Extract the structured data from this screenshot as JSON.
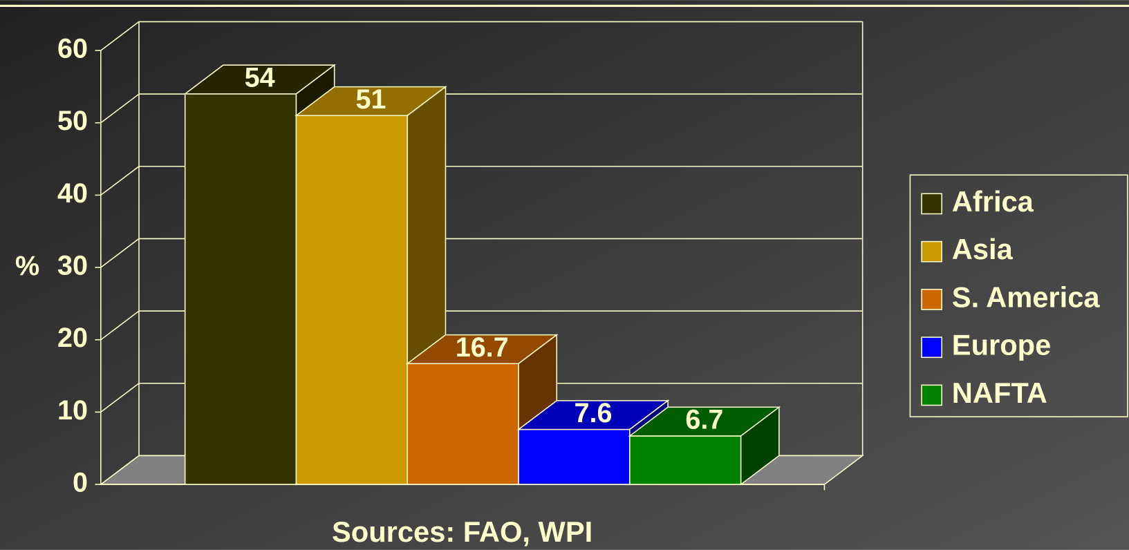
{
  "chart_data": {
    "type": "bar3d",
    "categories": [
      null
    ],
    "series": [
      {
        "name": "Africa",
        "color": "#333300",
        "values": [
          54
        ]
      },
      {
        "name": "Asia",
        "color": "#cc9900",
        "values": [
          51
        ]
      },
      {
        "name": "S. America",
        "color": "#cc6600",
        "values": [
          16.7
        ]
      },
      {
        "name": "Europe",
        "color": "#0000ff",
        "values": [
          7.6
        ]
      },
      {
        "name": "NAFTA",
        "color": "#008000",
        "values": [
          6.7
        ]
      }
    ],
    "ylabel": "%",
    "ylim": [
      0,
      60
    ],
    "yticks": [
      0,
      10,
      20,
      30,
      40,
      50,
      60
    ],
    "grid": true,
    "legend": "right",
    "caption": "Sources: FAO, WPI"
  }
}
